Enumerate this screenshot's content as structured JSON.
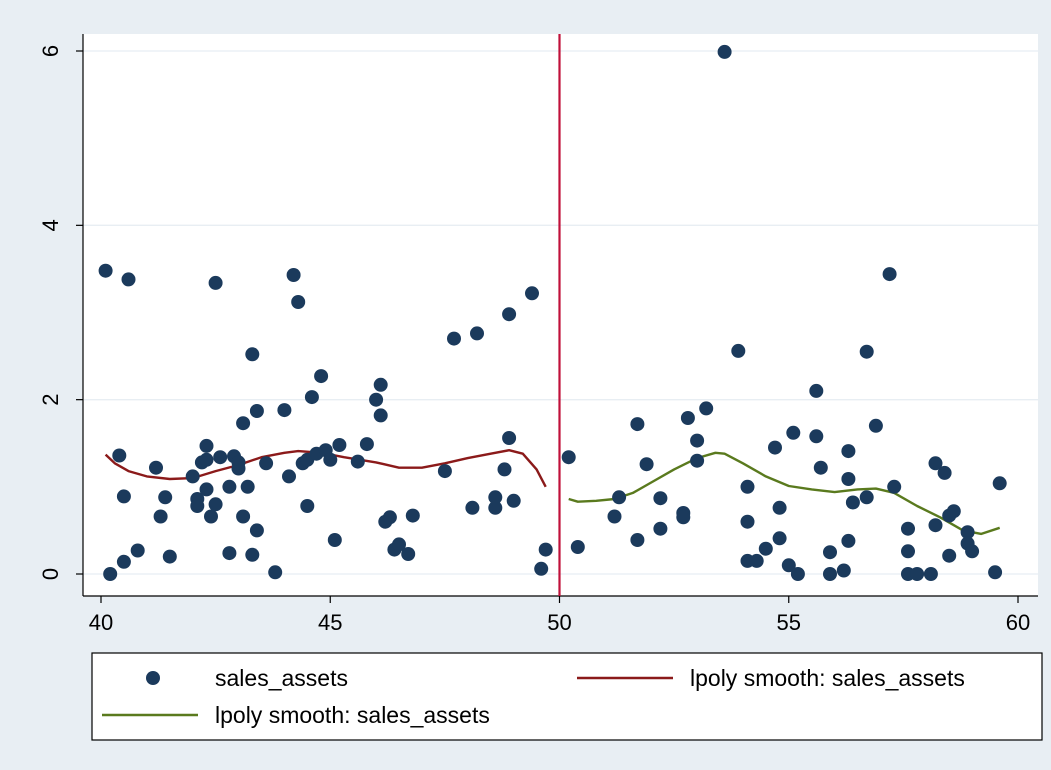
{
  "chart_data": {
    "type": "scatter",
    "xlim": [
      40,
      60
    ],
    "ylim": [
      0,
      6
    ],
    "x_ticks": [
      40,
      45,
      50,
      55,
      60
    ],
    "y_ticks": [
      0,
      2,
      4,
      6
    ],
    "grid": true,
    "cutoff_line": {
      "x": 50,
      "color": "#c0103a"
    },
    "legend_placement": "bottom",
    "colors": {
      "background": "#e8eef3",
      "plot_background": "#ffffff",
      "grid": "#e8eef3",
      "scatter": "#1b3a5c",
      "smooth_left": "#8b1a1a",
      "smooth_right": "#5a7a1e"
    },
    "series": [
      {
        "name": "sales_assets",
        "kind": "scatter",
        "points": [
          [
            40.1,
            3.48
          ],
          [
            40.2,
            0.0
          ],
          [
            40.4,
            1.36
          ],
          [
            40.5,
            0.89
          ],
          [
            40.5,
            0.14
          ],
          [
            40.6,
            3.38
          ],
          [
            40.8,
            0.27
          ],
          [
            41.2,
            1.22
          ],
          [
            41.3,
            0.66
          ],
          [
            41.4,
            0.88
          ],
          [
            41.5,
            0.2
          ],
          [
            42.0,
            1.12
          ],
          [
            42.1,
            0.86
          ],
          [
            42.1,
            0.78
          ],
          [
            42.2,
            1.28
          ],
          [
            42.3,
            1.31
          ],
          [
            42.3,
            1.47
          ],
          [
            42.3,
            0.97
          ],
          [
            42.4,
            0.66
          ],
          [
            42.5,
            0.8
          ],
          [
            42.5,
            3.34
          ],
          [
            42.6,
            1.34
          ],
          [
            42.8,
            1.0
          ],
          [
            42.8,
            0.24
          ],
          [
            42.9,
            1.35
          ],
          [
            43.0,
            1.21
          ],
          [
            43.0,
            1.28
          ],
          [
            43.1,
            1.73
          ],
          [
            43.1,
            0.66
          ],
          [
            43.2,
            1.0
          ],
          [
            43.3,
            2.52
          ],
          [
            43.3,
            0.22
          ],
          [
            43.4,
            0.5
          ],
          [
            43.4,
            1.87
          ],
          [
            43.6,
            1.27
          ],
          [
            43.8,
            0.02
          ],
          [
            44.0,
            1.88
          ],
          [
            44.1,
            1.12
          ],
          [
            44.2,
            3.43
          ],
          [
            44.3,
            3.12
          ],
          [
            44.4,
            1.27
          ],
          [
            44.5,
            1.31
          ],
          [
            44.5,
            0.78
          ],
          [
            44.6,
            2.03
          ],
          [
            44.7,
            1.38
          ],
          [
            44.8,
            2.27
          ],
          [
            44.9,
            1.42
          ],
          [
            45.0,
            1.31
          ],
          [
            45.1,
            0.39
          ],
          [
            45.2,
            1.48
          ],
          [
            45.6,
            1.29
          ],
          [
            45.8,
            1.49
          ],
          [
            46.0,
            2.0
          ],
          [
            46.1,
            2.17
          ],
          [
            46.1,
            1.82
          ],
          [
            46.2,
            0.6
          ],
          [
            46.3,
            0.65
          ],
          [
            46.4,
            0.28
          ],
          [
            46.5,
            0.34
          ],
          [
            46.7,
            0.23
          ],
          [
            46.8,
            0.67
          ],
          [
            47.5,
            1.18
          ],
          [
            47.7,
            2.7
          ],
          [
            48.1,
            0.76
          ],
          [
            48.2,
            2.76
          ],
          [
            48.6,
            0.76
          ],
          [
            48.6,
            0.88
          ],
          [
            48.8,
            1.2
          ],
          [
            48.9,
            1.56
          ],
          [
            48.9,
            2.98
          ],
          [
            49.0,
            0.84
          ],
          [
            49.4,
            3.22
          ],
          [
            49.6,
            0.06
          ],
          [
            49.7,
            0.28
          ],
          [
            50.2,
            1.34
          ],
          [
            50.4,
            0.31
          ],
          [
            51.2,
            0.66
          ],
          [
            51.3,
            0.88
          ],
          [
            51.7,
            1.72
          ],
          [
            51.7,
            0.39
          ],
          [
            51.9,
            1.26
          ],
          [
            52.2,
            0.52
          ],
          [
            52.2,
            0.87
          ],
          [
            52.7,
            0.7
          ],
          [
            52.7,
            0.65
          ],
          [
            52.8,
            1.79
          ],
          [
            53.0,
            1.53
          ],
          [
            53.0,
            1.3
          ],
          [
            53.2,
            1.9
          ],
          [
            53.6,
            5.99
          ],
          [
            53.9,
            2.56
          ],
          [
            54.1,
            1.0
          ],
          [
            54.1,
            0.6
          ],
          [
            54.1,
            0.15
          ],
          [
            54.3,
            0.15
          ],
          [
            54.5,
            0.29
          ],
          [
            54.7,
            1.45
          ],
          [
            54.8,
            0.76
          ],
          [
            54.8,
            0.41
          ],
          [
            55.0,
            0.1
          ],
          [
            55.1,
            1.62
          ],
          [
            55.2,
            0.0
          ],
          [
            55.6,
            2.1
          ],
          [
            55.6,
            1.58
          ],
          [
            55.7,
            1.22
          ],
          [
            55.9,
            0.0
          ],
          [
            55.9,
            0.25
          ],
          [
            56.2,
            0.04
          ],
          [
            56.3,
            1.41
          ],
          [
            56.3,
            1.09
          ],
          [
            56.3,
            0.38
          ],
          [
            56.4,
            0.82
          ],
          [
            56.7,
            2.55
          ],
          [
            56.7,
            0.88
          ],
          [
            56.9,
            1.7
          ],
          [
            57.2,
            3.44
          ],
          [
            57.3,
            1.0
          ],
          [
            57.6,
            0.52
          ],
          [
            57.6,
            0.26
          ],
          [
            57.6,
            0.0
          ],
          [
            57.8,
            0.0
          ],
          [
            58.1,
            0.0
          ],
          [
            58.2,
            0.56
          ],
          [
            58.2,
            1.27
          ],
          [
            58.4,
            1.16
          ],
          [
            58.5,
            0.67
          ],
          [
            58.5,
            0.21
          ],
          [
            58.6,
            0.72
          ],
          [
            58.9,
            0.48
          ],
          [
            58.9,
            0.35
          ],
          [
            59.0,
            0.26
          ],
          [
            59.5,
            0.02
          ],
          [
            59.6,
            1.04
          ]
        ]
      },
      {
        "name": "lpoly smooth: sales_assets",
        "kind": "line",
        "side": "left",
        "points": [
          [
            40.1,
            1.37
          ],
          [
            40.3,
            1.27
          ],
          [
            40.6,
            1.18
          ],
          [
            41.0,
            1.12
          ],
          [
            41.5,
            1.09
          ],
          [
            42.0,
            1.1
          ],
          [
            42.5,
            1.18
          ],
          [
            43.0,
            1.25
          ],
          [
            43.5,
            1.34
          ],
          [
            44.0,
            1.39
          ],
          [
            44.3,
            1.41
          ],
          [
            44.8,
            1.39
          ],
          [
            45.3,
            1.34
          ],
          [
            46.0,
            1.28
          ],
          [
            46.5,
            1.22
          ],
          [
            47.0,
            1.22
          ],
          [
            47.5,
            1.27
          ],
          [
            48.0,
            1.33
          ],
          [
            48.5,
            1.38
          ],
          [
            48.9,
            1.42
          ],
          [
            49.2,
            1.38
          ],
          [
            49.5,
            1.2
          ],
          [
            49.7,
            1.0
          ]
        ]
      },
      {
        "name": "lpoly smooth: sales_assets",
        "kind": "line",
        "side": "right",
        "points": [
          [
            50.2,
            0.86
          ],
          [
            50.4,
            0.83
          ],
          [
            50.8,
            0.84
          ],
          [
            51.2,
            0.86
          ],
          [
            51.6,
            0.93
          ],
          [
            52.0,
            1.05
          ],
          [
            52.5,
            1.2
          ],
          [
            53.0,
            1.33
          ],
          [
            53.4,
            1.39
          ],
          [
            53.6,
            1.38
          ],
          [
            54.0,
            1.27
          ],
          [
            54.5,
            1.12
          ],
          [
            55.0,
            1.01
          ],
          [
            55.5,
            0.97
          ],
          [
            56.0,
            0.94
          ],
          [
            56.5,
            0.97
          ],
          [
            56.9,
            0.98
          ],
          [
            57.3,
            0.93
          ],
          [
            57.8,
            0.78
          ],
          [
            58.3,
            0.65
          ],
          [
            58.8,
            0.5
          ],
          [
            59.2,
            0.46
          ],
          [
            59.6,
            0.53
          ]
        ]
      }
    ]
  }
}
